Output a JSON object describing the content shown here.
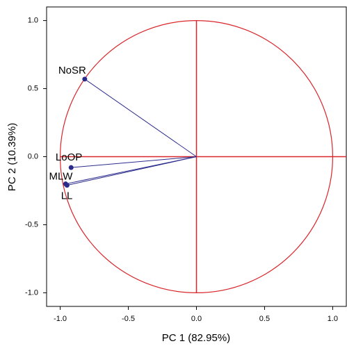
{
  "chart_data": {
    "type": "vectors",
    "x_label": "PC 1 (82.95%)",
    "y_label": "PC 2 (10.39%)",
    "labels": [
      "NoSR",
      "LoOP",
      "MLW",
      "LL"
    ],
    "x": [
      -0.82,
      -0.92,
      -0.96,
      -0.95
    ],
    "y": [
      0.57,
      -0.08,
      -0.2,
      -0.21
    ],
    "color": "#2b2b8c",
    "circle_color": "#d9262b",
    "unit_circle": true,
    "xlim": [
      -1.1,
      1.1
    ],
    "ylim": [
      -1.1,
      1.1
    ],
    "xticks": [
      {
        "value": -1,
        "label": "-1.0"
      },
      -0.5,
      {
        "value": 0,
        "label": "0.0"
      },
      0.5,
      {
        "value": 1,
        "label": "1.0"
      }
    ],
    "yticks": [
      {
        "value": -1,
        "label": "-1.0"
      },
      -0.5,
      {
        "value": 0,
        "label": "0.0"
      },
      0.5,
      {
        "value": 1,
        "label": "1.0"
      }
    ]
  }
}
